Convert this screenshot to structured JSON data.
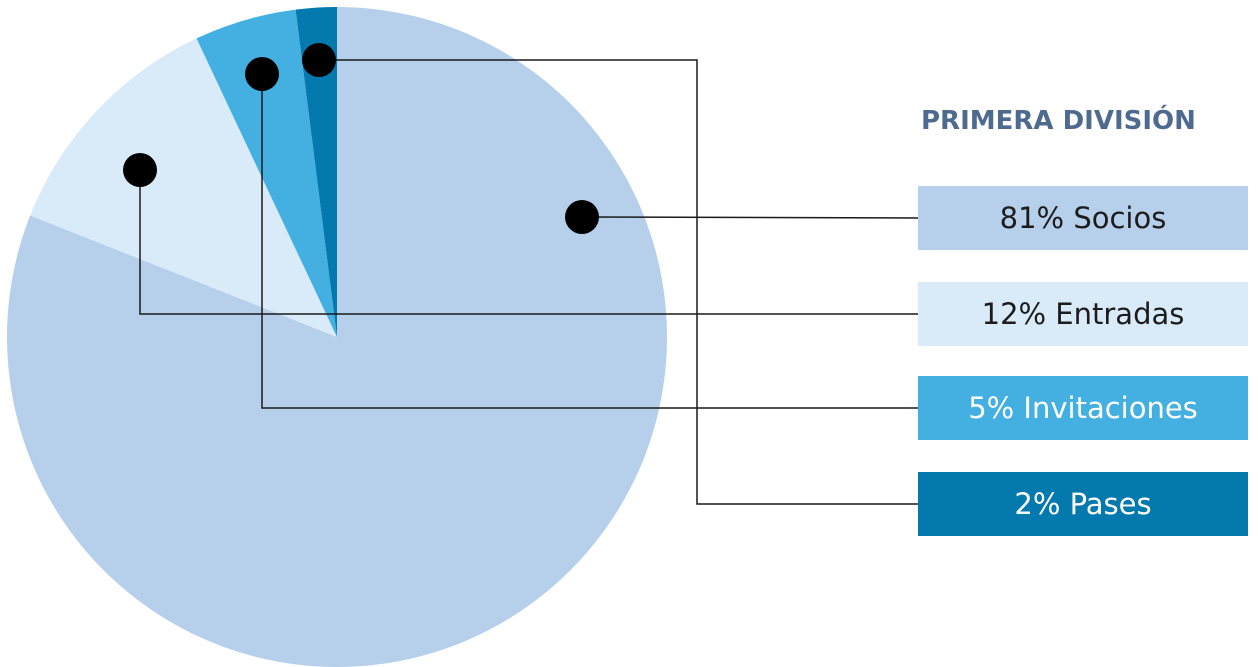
{
  "chart_data": {
    "type": "pie",
    "title": "PRIMERA DIVISIÓN",
    "slices": [
      {
        "label": "Socios",
        "value": 81,
        "text": "81% Socios",
        "color": "#b6cfeb",
        "text_color": "#1c1c1c"
      },
      {
        "label": "Entradas",
        "value": 12,
        "text": "12% Entradas",
        "color": "#d9ebf9",
        "text_color": "#1c1c1c"
      },
      {
        "label": "Invitaciones",
        "value": 5,
        "text": "5% Invitaciones",
        "color": "#43b0e1",
        "text_color": "#ffffff"
      },
      {
        "label": "Pases",
        "value": 2,
        "text": "2% Pases",
        "color": "#0479ae",
        "text_color": "#ffffff"
      }
    ],
    "legend_position": "right",
    "grid": false
  }
}
